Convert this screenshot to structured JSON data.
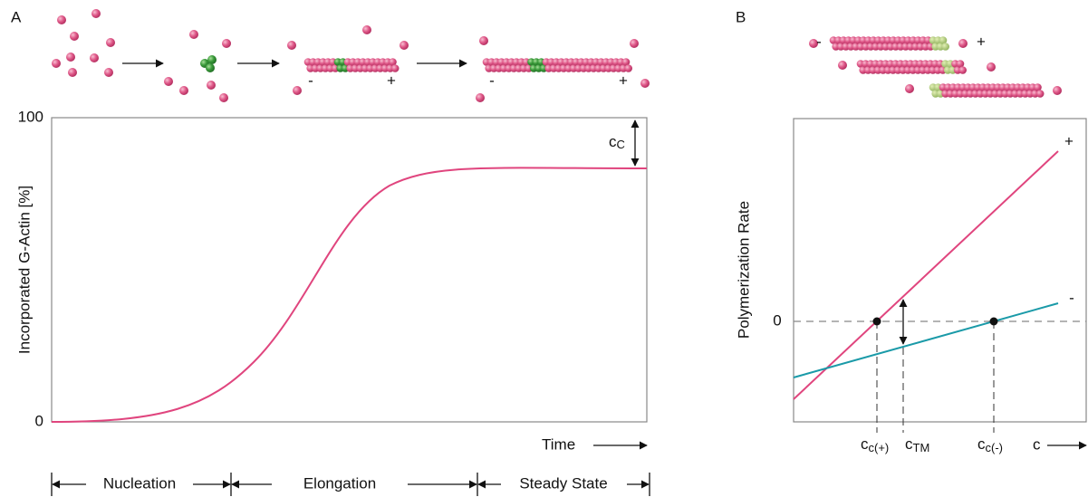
{
  "panel_a": {
    "label": "A",
    "y_axis_label": "Incorporated G-Actin [%]",
    "y_ticks": [
      "100",
      "0"
    ],
    "x_axis_label": "Time",
    "annotation": {
      "main": "c",
      "sub": "C"
    },
    "filament_signs": [
      "-",
      "+",
      "-",
      "+"
    ],
    "phases": [
      "Nucleation",
      "Elongation",
      "Steady State"
    ]
  },
  "panel_b": {
    "label": "B",
    "y_axis_label": "Polymerization Rate",
    "y_tick": "0",
    "line_labels": [
      "+",
      "-"
    ],
    "filament_signs": [
      "-",
      "+"
    ],
    "x_labels": [
      {
        "main": "c",
        "sub": "c(+)"
      },
      {
        "main": "c",
        "sub": "TM"
      },
      {
        "main": "c",
        "sub": "c(-)"
      },
      {
        "main": "c"
      }
    ]
  }
}
